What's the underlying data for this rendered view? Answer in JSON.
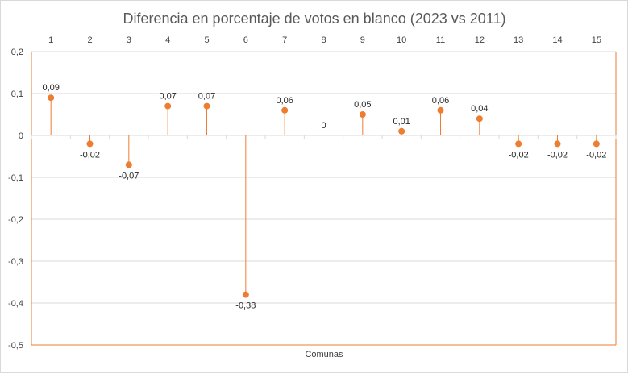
{
  "chart_data": {
    "type": "stem",
    "title": "Diferencia en porcentaje de votos en blanco (2023 vs 2011)",
    "xlabel": "Comunas",
    "ylabel": "",
    "categories": [
      "1",
      "2",
      "3",
      "4",
      "5",
      "6",
      "7",
      "8",
      "9",
      "10",
      "11",
      "12",
      "13",
      "14",
      "15"
    ],
    "values": [
      0.09,
      -0.02,
      -0.07,
      0.07,
      0.07,
      -0.38,
      0.06,
      0,
      0.05,
      0.01,
      0.06,
      0.04,
      -0.02,
      -0.02,
      -0.02
    ],
    "value_labels": [
      "0,09",
      "-0,02",
      "-0,07",
      "0,07",
      "0,07",
      "-0,38",
      "0,06",
      "0",
      "0,05",
      "0,01",
      "0,06",
      "0,04",
      "-0,02",
      "-0,02",
      "-0,02"
    ],
    "ylim": [
      -0.5,
      0.2
    ],
    "yticks": [
      0.2,
      0.1,
      0,
      -0.1,
      -0.2,
      -0.3,
      -0.4,
      -0.5
    ],
    "ytick_labels": [
      "0,2",
      "0,1",
      "0",
      "-0,1",
      "-0,2",
      "-0,3",
      "-0,4",
      "-0,5"
    ],
    "xaxis_position": "top",
    "grid": true,
    "legend": "none",
    "colors": {
      "series": "#ED7D31",
      "grid": "#d9d9d9",
      "text": "#404040"
    }
  }
}
